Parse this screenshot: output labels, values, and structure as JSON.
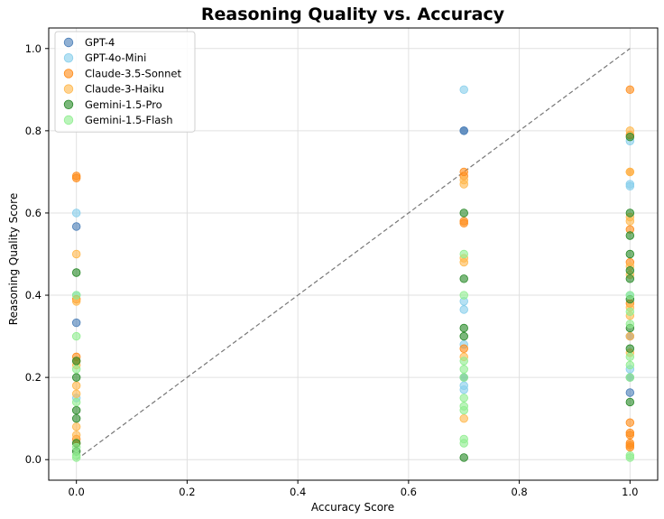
{
  "chart_data": {
    "type": "scatter",
    "title": "Reasoning Quality vs. Accuracy",
    "xlabel": "Accuracy Score",
    "ylabel": "Reasoning Quality Score",
    "xlim": [
      -0.05,
      1.05
    ],
    "ylim": [
      -0.05,
      1.05
    ],
    "xticks": [
      "0.0",
      "0.2",
      "0.4",
      "0.6",
      "0.8",
      "1.0"
    ],
    "yticks": [
      "0.0",
      "0.2",
      "0.4",
      "0.6",
      "0.8",
      "1.0"
    ],
    "grid": true,
    "legend_position": "top-left",
    "reference_line": {
      "style": "dashed",
      "from": [
        0,
        0
      ],
      "to": [
        1,
        1
      ],
      "color": "#777777"
    },
    "series": [
      {
        "name": "GPT-4",
        "color": "#4c7fb8",
        "points": [
          [
            0.0,
            0.567
          ],
          [
            0.0,
            0.333
          ],
          [
            0.7,
            0.8
          ],
          [
            0.7,
            0.8
          ],
          [
            0.7,
            0.2
          ],
          [
            1.0,
            0.163
          ],
          [
            1.0,
            0.2
          ],
          [
            1.0,
            0.3
          ]
        ]
      },
      {
        "name": "GPT-4o-Mini",
        "color": "#87ceeb",
        "points": [
          [
            0.0,
            0.6
          ],
          [
            0.0,
            0.4
          ],
          [
            0.0,
            0.15
          ],
          [
            0.7,
            0.9
          ],
          [
            0.7,
            0.385
          ],
          [
            0.7,
            0.365
          ],
          [
            0.7,
            0.28
          ],
          [
            0.7,
            0.18
          ],
          [
            0.7,
            0.17
          ],
          [
            1.0,
            0.775
          ],
          [
            1.0,
            0.67
          ],
          [
            1.0,
            0.665
          ],
          [
            1.0,
            0.4
          ],
          [
            1.0,
            0.22
          ]
        ]
      },
      {
        "name": "Claude-3.5-Sonnet",
        "color": "#ff8c1a",
        "points": [
          [
            0.0,
            0.69
          ],
          [
            0.0,
            0.685
          ],
          [
            0.0,
            0.39
          ],
          [
            0.0,
            0.25
          ],
          [
            0.0,
            0.24
          ],
          [
            0.0,
            0.05
          ],
          [
            0.7,
            0.7
          ],
          [
            0.7,
            0.69
          ],
          [
            0.7,
            0.58
          ],
          [
            0.7,
            0.575
          ],
          [
            0.7,
            0.27
          ],
          [
            1.0,
            0.9
          ],
          [
            1.0,
            0.79
          ],
          [
            1.0,
            0.7
          ],
          [
            1.0,
            0.56
          ],
          [
            1.0,
            0.48
          ],
          [
            1.0,
            0.38
          ],
          [
            1.0,
            0.09
          ],
          [
            1.0,
            0.065
          ],
          [
            1.0,
            0.06
          ],
          [
            1.0,
            0.04
          ],
          [
            1.0,
            0.035
          ],
          [
            1.0,
            0.03
          ]
        ]
      },
      {
        "name": "Claude-3-Haiku",
        "color": "#ffb84d",
        "points": [
          [
            0.0,
            0.5
          ],
          [
            0.0,
            0.385
          ],
          [
            0.0,
            0.23
          ],
          [
            0.0,
            0.18
          ],
          [
            0.0,
            0.16
          ],
          [
            0.0,
            0.08
          ],
          [
            0.0,
            0.06
          ],
          [
            0.0,
            0.04
          ],
          [
            0.7,
            0.68
          ],
          [
            0.7,
            0.67
          ],
          [
            0.7,
            0.49
          ],
          [
            0.7,
            0.48
          ],
          [
            0.7,
            0.25
          ],
          [
            0.7,
            0.1
          ],
          [
            1.0,
            0.8
          ],
          [
            1.0,
            0.7
          ],
          [
            1.0,
            0.59
          ],
          [
            1.0,
            0.58
          ],
          [
            1.0,
            0.47
          ],
          [
            1.0,
            0.45
          ],
          [
            1.0,
            0.37
          ],
          [
            1.0,
            0.35
          ],
          [
            1.0,
            0.3
          ],
          [
            1.0,
            0.26
          ]
        ]
      },
      {
        "name": "Gemini-1.5-Pro",
        "color": "#2a8a2a",
        "points": [
          [
            0.0,
            0.455
          ],
          [
            0.0,
            0.24
          ],
          [
            0.0,
            0.2
          ],
          [
            0.0,
            0.12
          ],
          [
            0.0,
            0.1
          ],
          [
            0.0,
            0.04
          ],
          [
            0.0,
            0.02
          ],
          [
            0.7,
            0.6
          ],
          [
            0.7,
            0.44
          ],
          [
            0.7,
            0.32
          ],
          [
            0.7,
            0.3
          ],
          [
            0.7,
            0.005
          ],
          [
            1.0,
            0.785
          ],
          [
            1.0,
            0.6
          ],
          [
            1.0,
            0.545
          ],
          [
            1.0,
            0.5
          ],
          [
            1.0,
            0.46
          ],
          [
            1.0,
            0.44
          ],
          [
            1.0,
            0.39
          ],
          [
            1.0,
            0.32
          ],
          [
            1.0,
            0.27
          ],
          [
            1.0,
            0.14
          ]
        ]
      },
      {
        "name": "Gemini-1.5-Flash",
        "color": "#90ee90",
        "points": [
          [
            0.0,
            0.4
          ],
          [
            0.0,
            0.3
          ],
          [
            0.0,
            0.22
          ],
          [
            0.0,
            0.14
          ],
          [
            0.0,
            0.03
          ],
          [
            0.0,
            0.01
          ],
          [
            0.0,
            0.005
          ],
          [
            0.7,
            0.5
          ],
          [
            0.7,
            0.4
          ],
          [
            0.7,
            0.24
          ],
          [
            0.7,
            0.22
          ],
          [
            0.7,
            0.2
          ],
          [
            0.7,
            0.15
          ],
          [
            0.7,
            0.13
          ],
          [
            0.7,
            0.12
          ],
          [
            0.7,
            0.05
          ],
          [
            0.7,
            0.04
          ],
          [
            1.0,
            0.4
          ],
          [
            1.0,
            0.36
          ],
          [
            1.0,
            0.33
          ],
          [
            1.0,
            0.25
          ],
          [
            1.0,
            0.23
          ],
          [
            1.0,
            0.2
          ],
          [
            1.0,
            0.01
          ],
          [
            1.0,
            0.005
          ]
        ]
      }
    ]
  }
}
